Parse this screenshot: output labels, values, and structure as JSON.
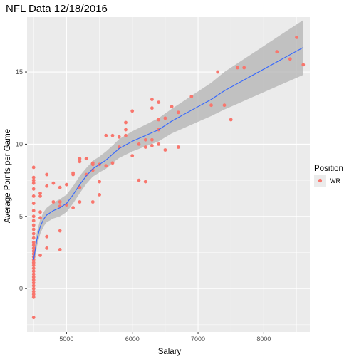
{
  "chart_data": {
    "type": "scatter",
    "title": "NFL Data 12/18/2016",
    "xlabel": "Salary",
    "ylabel": "Average Points per Game",
    "xlim": [
      4400,
      8700
    ],
    "ylim": [
      -3,
      18.8
    ],
    "x_ticks": [
      5000,
      6000,
      7000,
      8000
    ],
    "y_ticks": [
      0,
      5,
      10,
      15
    ],
    "grid": true,
    "legend": {
      "title": "Position",
      "entries": [
        "WR"
      ],
      "placement": "right"
    },
    "colors": {
      "points": "#f8766d",
      "smooth": "#3366ff",
      "ribbon": "#b3b3b3",
      "panel": "#ebebeb",
      "grid": "#ffffff"
    },
    "series": [
      {
        "name": "WR",
        "points": [
          [
            4500,
            8.4
          ],
          [
            4500,
            7.7
          ],
          [
            4500,
            7.5
          ],
          [
            4500,
            7.3
          ],
          [
            4500,
            6.9
          ],
          [
            4500,
            6.4
          ],
          [
            4500,
            5.9
          ],
          [
            4500,
            5.4
          ],
          [
            4500,
            5.0
          ],
          [
            4500,
            4.7
          ],
          [
            4500,
            4.4
          ],
          [
            4500,
            4.1
          ],
          [
            4500,
            3.8
          ],
          [
            4500,
            3.5
          ],
          [
            4500,
            3.2
          ],
          [
            4500,
            3.0
          ],
          [
            4500,
            2.8
          ],
          [
            4500,
            2.6
          ],
          [
            4500,
            2.4
          ],
          [
            4500,
            2.2
          ],
          [
            4500,
            2.0
          ],
          [
            4500,
            1.8
          ],
          [
            4500,
            1.6
          ],
          [
            4500,
            1.4
          ],
          [
            4500,
            1.2
          ],
          [
            4500,
            1.0
          ],
          [
            4500,
            0.8
          ],
          [
            4500,
            0.6
          ],
          [
            4500,
            0.4
          ],
          [
            4500,
            0.2
          ],
          [
            4500,
            0.0
          ],
          [
            4500,
            -0.2
          ],
          [
            4500,
            -0.4
          ],
          [
            4500,
            -0.6
          ],
          [
            4500,
            -2.0
          ],
          [
            4600,
            6.6
          ],
          [
            4600,
            6.4
          ],
          [
            4600,
            5.3
          ],
          [
            4600,
            4.9
          ],
          [
            4600,
            2.3
          ],
          [
            4700,
            7.9
          ],
          [
            4700,
            7.1
          ],
          [
            4700,
            3.6
          ],
          [
            4700,
            2.8
          ],
          [
            4800,
            7.3
          ],
          [
            4800,
            6.0
          ],
          [
            4900,
            7.0
          ],
          [
            4900,
            6.0
          ],
          [
            4900,
            5.7
          ],
          [
            4900,
            4.0
          ],
          [
            4900,
            2.7
          ],
          [
            5000,
            7.2
          ],
          [
            5000,
            5.8
          ],
          [
            5100,
            8.0
          ],
          [
            5100,
            7.9
          ],
          [
            5100,
            5.6
          ],
          [
            5200,
            9.0
          ],
          [
            5200,
            8.8
          ],
          [
            5200,
            7.0
          ],
          [
            5200,
            6.0
          ],
          [
            5300,
            9.0
          ],
          [
            5300,
            7.9
          ],
          [
            5400,
            8.7
          ],
          [
            5400,
            8.6
          ],
          [
            5400,
            8.2
          ],
          [
            5400,
            6.0
          ],
          [
            5500,
            8.6
          ],
          [
            5500,
            7.4
          ],
          [
            5500,
            6.5
          ],
          [
            5600,
            10.6
          ],
          [
            5600,
            8.5
          ],
          [
            5700,
            10.6
          ],
          [
            5700,
            8.7
          ],
          [
            5800,
            10.5
          ],
          [
            5800,
            9.8
          ],
          [
            5900,
            11.5
          ],
          [
            5900,
            11.0
          ],
          [
            5900,
            10.6
          ],
          [
            6000,
            12.3
          ],
          [
            6000,
            9.2
          ],
          [
            6100,
            10.0
          ],
          [
            6100,
            7.5
          ],
          [
            6200,
            10.3
          ],
          [
            6200,
            9.8
          ],
          [
            6200,
            7.4
          ],
          [
            6300,
            13.1
          ],
          [
            6300,
            12.5
          ],
          [
            6300,
            10.3
          ],
          [
            6300,
            9.9
          ],
          [
            6400,
            12.9
          ],
          [
            6400,
            11.7
          ],
          [
            6400,
            11.0
          ],
          [
            6400,
            10.0
          ],
          [
            6500,
            11.8
          ],
          [
            6500,
            9.6
          ],
          [
            6600,
            12.6
          ],
          [
            6700,
            12.2
          ],
          [
            6700,
            9.8
          ],
          [
            6900,
            13.3
          ],
          [
            7200,
            12.7
          ],
          [
            7300,
            15.0
          ],
          [
            7400,
            12.7
          ],
          [
            7500,
            11.7
          ],
          [
            7600,
            15.3
          ],
          [
            7700,
            15.3
          ],
          [
            8200,
            16.4
          ],
          [
            8400,
            15.9
          ],
          [
            8500,
            17.4
          ],
          [
            8600,
            15.5
          ]
        ]
      }
    ],
    "smooth": {
      "x": [
        4500,
        4550,
        4600,
        4650,
        4700,
        4800,
        4900,
        5000,
        5100,
        5200,
        5300,
        5400,
        5500,
        5600,
        5700,
        5800,
        6000,
        6200,
        6400,
        6600,
        6800,
        7000,
        7200,
        7400,
        7600,
        7800,
        8000,
        8200,
        8400,
        8600
      ],
      "y": [
        2.0,
        3.4,
        4.3,
        4.8,
        5.1,
        5.4,
        5.6,
        5.9,
        6.5,
        7.2,
        7.8,
        8.3,
        8.6,
        8.9,
        9.3,
        9.7,
        10.2,
        10.6,
        11.0,
        11.6,
        12.1,
        12.6,
        13.1,
        13.7,
        14.2,
        14.7,
        15.2,
        15.7,
        16.2,
        16.7
      ],
      "ribbon_width": [
        0.6,
        0.5,
        0.5,
        0.5,
        0.5,
        0.55,
        0.6,
        0.6,
        0.6,
        0.6,
        0.55,
        0.55,
        0.55,
        0.6,
        0.6,
        0.65,
        0.7,
        0.75,
        0.8,
        0.85,
        0.95,
        1.05,
        1.15,
        1.3,
        1.4,
        1.5,
        1.6,
        1.7,
        1.8,
        1.9
      ]
    }
  }
}
